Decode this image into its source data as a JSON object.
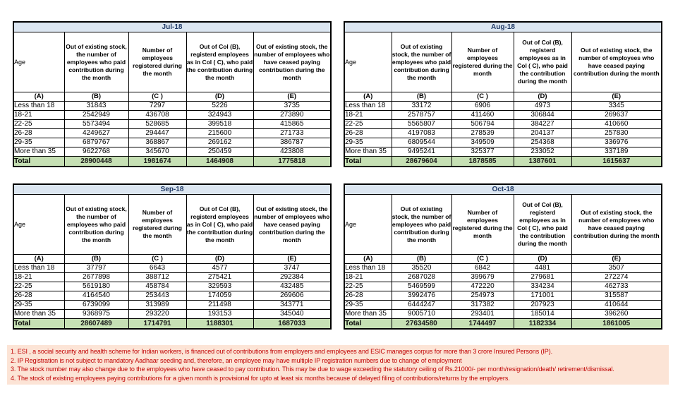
{
  "columns": {
    "age": "Age",
    "b": "Out of existing stock, the number of employees who paid contribution during the month",
    "c": "Number of employees registered during the month",
    "d": "Out of Col (B), registerd employees as in Col ( C), who paid the contribution during the month",
    "e": "Out of existing stock, the number of employees who have ceased paying contribution during the month",
    "letters": [
      "(A)",
      "(B)",
      "(C )",
      "(D)",
      "(E)"
    ]
  },
  "tables": [
    {
      "month": "Jul-18",
      "rows": [
        [
          "Less than 18",
          "31843",
          "7297",
          "5226",
          "3735"
        ],
        [
          "18-21",
          "2542949",
          "436708",
          "324943",
          "273890"
        ],
        [
          "22-25",
          "5573494",
          "528685",
          "399518",
          "415865"
        ],
        [
          "26-28",
          "4249627",
          "294447",
          "215600",
          "271733"
        ],
        [
          "29-35",
          "6879767",
          "368867",
          "269162",
          "386787"
        ],
        [
          "More than 35",
          "9622768",
          "345670",
          "250459",
          "423808"
        ]
      ],
      "total": [
        "Total",
        "28900448",
        "1981674",
        "1464908",
        "1775818"
      ]
    },
    {
      "month": "Aug-18",
      "rows": [
        [
          "Less than 18",
          "33172",
          "6906",
          "4973",
          "3345"
        ],
        [
          "18-21",
          "2578757",
          "411460",
          "306844",
          "269637"
        ],
        [
          "22-25",
          "5565807",
          "506794",
          "384227",
          "410660"
        ],
        [
          "26-28",
          "4197083",
          "278539",
          "204137",
          "257830"
        ],
        [
          "29-35",
          "6809544",
          "349509",
          "254368",
          "336976"
        ],
        [
          "More than 35",
          "9495241",
          "325377",
          "233052",
          "337189"
        ]
      ],
      "total": [
        "Total",
        "28679604",
        "1878585",
        "1387601",
        "1615637"
      ]
    },
    {
      "month": "Sep-18",
      "rows": [
        [
          "Less than 18",
          "37797",
          "6643",
          "4577",
          "3747"
        ],
        [
          "18-21",
          "2677898",
          "388712",
          "275421",
          "292384"
        ],
        [
          "22-25",
          "5619180",
          "458784",
          "329593",
          "432485"
        ],
        [
          "26-28",
          "4164540",
          "253443",
          "174059",
          "269606"
        ],
        [
          "29-35",
          "6739099",
          "313989",
          "211498",
          "343771"
        ],
        [
          "More than 35",
          "9368975",
          "293220",
          "193153",
          "345040"
        ]
      ],
      "total": [
        "Total",
        "28607489",
        "1714791",
        "1188301",
        "1687033"
      ]
    },
    {
      "month": "Oct-18",
      "rows": [
        [
          "Less than 18",
          "35520",
          "6842",
          "4481",
          "3507"
        ],
        [
          "18-21",
          "2687028",
          "399679",
          "279681",
          "272274"
        ],
        [
          "22-25",
          "5469599",
          "472220",
          "334234",
          "462733"
        ],
        [
          "26-28",
          "3992476",
          "254973",
          "171001",
          "315587"
        ],
        [
          "29-35",
          "6444247",
          "317382",
          "207923",
          "410644"
        ],
        [
          "More than 35",
          "9005710",
          "293401",
          "185014",
          "396260"
        ]
      ],
      "total": [
        "Total",
        "27634580",
        "1744497",
        "1182334",
        "1861005"
      ]
    }
  ],
  "footnotes": [
    "1. ESI , a social security and health scheme for Indian workers, is financed out of contributions from employers and employees and ESIC manages corpus for more than 3 crore Insured Persons (IP).",
    "2. IP Registration is not subject to mandatory Aadhaar seeding and, therefore, an employee may have multiple IP registration numbers due to change of employment",
    "3. The stock number may also change due to the employees who have ceased to pay contribution. This may be due to wage exceeding the statutory ceiling of Rs.21000/- per month/resignation/death/ retirement/dismissal.",
    "4. The stock of existing employees paying contributions for a given month is provisional for upto at least six months because of delayed filing of contributions/returns by the employers."
  ],
  "colors": {
    "title_bg": "#dce6f1",
    "title_text": "#1f3864",
    "total_bg": "#c6e0b4",
    "note_bg": "#fce4d6",
    "note_text": "#c00000",
    "border": "#000000"
  }
}
